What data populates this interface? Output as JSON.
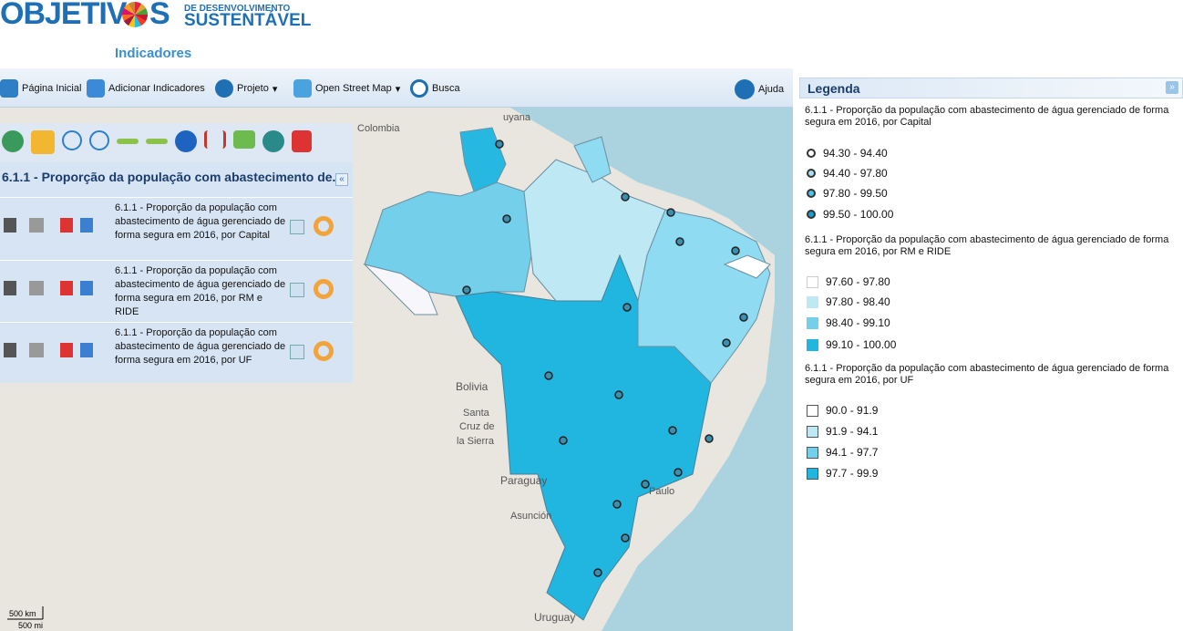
{
  "header": {
    "logo_word": "OBJETIV",
    "logo_letter": "S",
    "tagline_top": "DE DESENVOLVIMENTO",
    "tagline_bottom": "SUSTENTÁVEL",
    "subtitle": "Indicadores"
  },
  "toolbar": {
    "items": [
      "Página Inicial",
      "Adicionar Indicadores",
      "Projeto",
      "Open Street Map",
      "Busca",
      "Ajuda"
    ]
  },
  "layers_panel": {
    "title": "6.1.1 - Proporção da população com abastecimento de...",
    "layers": [
      "6.1.1 - Proporção da população com abastecimento de água gerenciado de forma segura em 2016, por Capital",
      "6.1.1 - Proporção da população com abastecimento de água gerenciado de forma segura em 2016, por RM e RIDE",
      "6.1.1 - Proporção da população com abastecimento de água gerenciado de forma segura em 2016, por UF"
    ]
  },
  "map": {
    "labels": [
      "Colombia",
      "uyana",
      "Bolivia",
      "Santa",
      "Cruz de",
      "la Sierra",
      "Paraguay",
      "Asunción",
      "Paulo",
      "Uruguay"
    ],
    "scale": {
      "km": "500 km",
      "mi": "500 mi"
    }
  },
  "legend": {
    "title": "Legenda",
    "groups": [
      {
        "title": "6.1.1 - Proporção da população com abastecimento de água gerenciado de forma segura em 2016, por Capital",
        "items": [
          "94.30 - 94.40",
          "94.40 - 97.80",
          "97.80 - 99.50",
          "99.50 - 100.00"
        ]
      },
      {
        "title": "6.1.1 - Proporção da população com abastecimento de água gerenciado de forma segura em 2016, por RM e RIDE",
        "items": [
          "97.60 - 97.80",
          "97.80 - 98.40",
          "98.40 - 99.10",
          "99.10 - 100.00"
        ]
      },
      {
        "title": "6.1.1 - Proporção da população com abastecimento de água gerenciado de forma segura em 2016, por UF",
        "items": [
          "90.0 - 91.9",
          "91.9 - 94.1",
          "94.1 - 97.7",
          "97.7 - 99.9"
        ]
      }
    ]
  }
}
